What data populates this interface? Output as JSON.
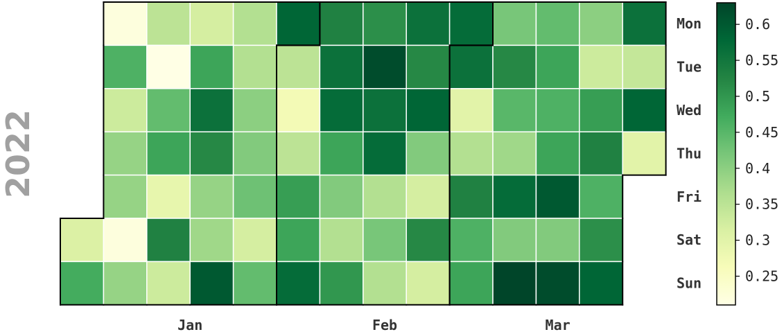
{
  "chart_data": {
    "type": "heatmap",
    "year": "2022",
    "weekdays": [
      "Mon",
      "Tue",
      "Wed",
      "Thu",
      "Fri",
      "Sat",
      "Sun"
    ],
    "month_labels": [
      "Jan",
      "Feb",
      "Mar"
    ],
    "weeks": [
      "2021-12-27",
      "2022-01-03",
      "2022-01-10",
      "2022-01-17",
      "2022-01-24",
      "2022-01-31",
      "2022-02-07",
      "2022-02-14",
      "2022-02-21",
      "2022-02-28",
      "2022-03-07",
      "2022-03-14",
      "2022-03-21",
      "2022-03-28"
    ],
    "values": [
      [
        null,
        0.22,
        0.35,
        0.32,
        0.36,
        0.58,
        0.53,
        0.51,
        0.56,
        0.57,
        0.42,
        0.44,
        0.4,
        0.56
      ],
      [
        null,
        0.46,
        0.21,
        0.48,
        0.36,
        0.35,
        0.56,
        0.62,
        0.52,
        0.56,
        0.52,
        0.48,
        0.33,
        0.34
      ],
      [
        null,
        0.33,
        0.44,
        0.56,
        0.4,
        0.27,
        0.57,
        0.56,
        0.58,
        0.3,
        0.45,
        0.46,
        0.49,
        0.58
      ],
      [
        null,
        0.39,
        0.48,
        0.52,
        0.41,
        0.35,
        0.48,
        0.57,
        0.41,
        0.36,
        0.38,
        0.48,
        0.53,
        0.3
      ],
      [
        null,
        0.39,
        0.29,
        0.39,
        0.43,
        0.49,
        0.41,
        0.36,
        0.32,
        0.53,
        0.57,
        0.6,
        0.46,
        null
      ],
      [
        0.31,
        0.22,
        0.53,
        0.38,
        0.32,
        0.48,
        0.36,
        0.42,
        0.52,
        0.46,
        0.41,
        0.41,
        0.51,
        null
      ],
      [
        0.47,
        0.39,
        0.33,
        0.6,
        0.44,
        0.57,
        0.5,
        0.36,
        0.32,
        0.48,
        0.64,
        0.62,
        0.58,
        null
      ]
    ],
    "colorbar": {
      "min": 0.21,
      "max": 0.63,
      "ticks": [
        "0.25",
        "0.3",
        "0.35",
        "0.4",
        "0.45",
        "0.5",
        "0.55",
        "0.6"
      ],
      "colormap": [
        "#ffffe5",
        "#f7fcb9",
        "#d9f0a3",
        "#addd8e",
        "#78c679",
        "#41ab5d",
        "#238443",
        "#006837",
        "#004529"
      ]
    },
    "cell_border_color": "#ffffff",
    "month_border_color": "#000000"
  }
}
